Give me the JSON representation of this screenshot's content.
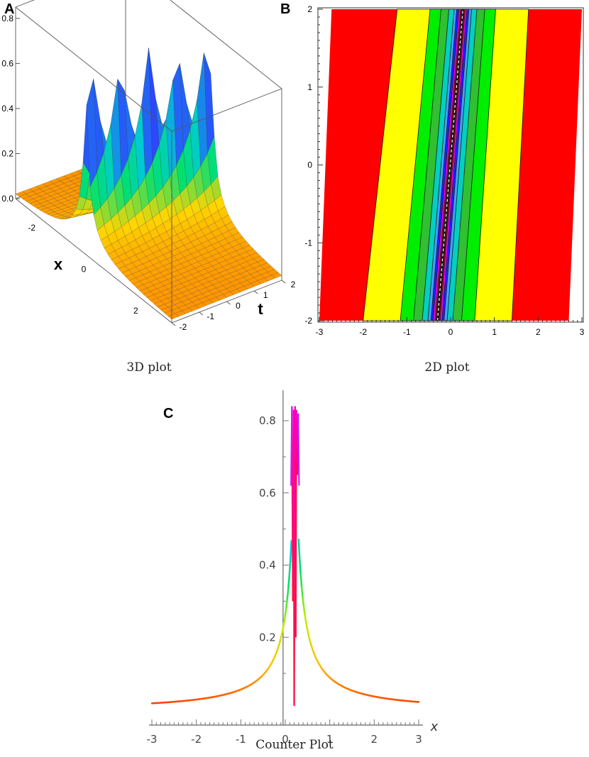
{
  "panels": {
    "a": {
      "letter": "A",
      "caption": "3D plot"
    },
    "b": {
      "letter": "B",
      "caption": "2D plot"
    },
    "c": {
      "letter": "C",
      "caption": "Counter Plot"
    }
  },
  "chart_data": [
    {
      "id": "A",
      "type": "surface3d",
      "title": "",
      "xlabel": "x",
      "ylabel": "t",
      "zlabel": "",
      "x_ticks": [
        "-2",
        "0",
        "2"
      ],
      "t_ticks": [
        "2",
        "1",
        "0",
        "-1",
        "-2"
      ],
      "z_ticks": [
        "0.0",
        "0.2",
        "0.4",
        "0.6",
        "0.8"
      ],
      "xlim": [
        -3,
        3
      ],
      "tlim": [
        -2,
        2
      ],
      "zlim": [
        0,
        0.85
      ],
      "peak_value": 0.85,
      "colormap": [
        "#ff8c00",
        "#ffd700",
        "#00e070",
        "#00c8d8",
        "#3040ff",
        "#ff00ff",
        "#e00030"
      ]
    },
    {
      "id": "B",
      "type": "contour",
      "title": "",
      "xlabel": "",
      "ylabel": "",
      "xlim": [
        -3,
        3
      ],
      "ylim": [
        -2,
        2
      ],
      "x_ticks": [
        "-3",
        "-2",
        "-1",
        "0",
        "1",
        "2",
        "3"
      ],
      "y_ticks": [
        "2",
        "1",
        "0",
        "-1",
        "-2"
      ],
      "bands": [
        {
          "color": "#ff0000",
          "half_width_bottom": 3.0,
          "half_width_top": 3.0
        },
        {
          "color": "#ffff00",
          "half_width_bottom": 1.7,
          "half_width_top": 1.5
        },
        {
          "color": "#00ee00",
          "half_width_bottom": 0.85,
          "half_width_top": 0.75
        },
        {
          "color": "#30c030",
          "half_width_bottom": 0.55,
          "half_width_top": 0.5
        },
        {
          "color": "#00d0c0",
          "half_width_bottom": 0.35,
          "half_width_top": 0.32
        },
        {
          "color": "#40a0ff",
          "half_width_bottom": 0.22,
          "half_width_top": 0.2
        },
        {
          "color": "#2020ff",
          "half_width_bottom": 0.15,
          "half_width_top": 0.14
        },
        {
          "color": "#ff00ff",
          "half_width_bottom": 0.1,
          "half_width_top": 0.09
        },
        {
          "color": "#e00030",
          "half_width_bottom": 0.06,
          "half_width_top": 0.055
        },
        {
          "color": "#101010",
          "half_width_bottom": 0.035,
          "half_width_top": 0.03
        }
      ],
      "center_bottom": -0.3,
      "center_top": 0.28
    },
    {
      "id": "C",
      "type": "line",
      "title": "",
      "xlabel": "x",
      "ylabel": "",
      "xlim": [
        -3,
        3
      ],
      "ylim": [
        0,
        0.85
      ],
      "x_ticks": [
        "-3",
        "-2",
        "-1",
        "0",
        "1",
        "2",
        "3"
      ],
      "y_ticks": [
        "0.2",
        "0.4",
        "0.6",
        "0.8"
      ],
      "peak_x": 0.22,
      "peak_value": 0.84,
      "tail_value_at_minus3": 0.05,
      "tail_value_at_3": 0.055,
      "dip_value": 0.01
    }
  ]
}
